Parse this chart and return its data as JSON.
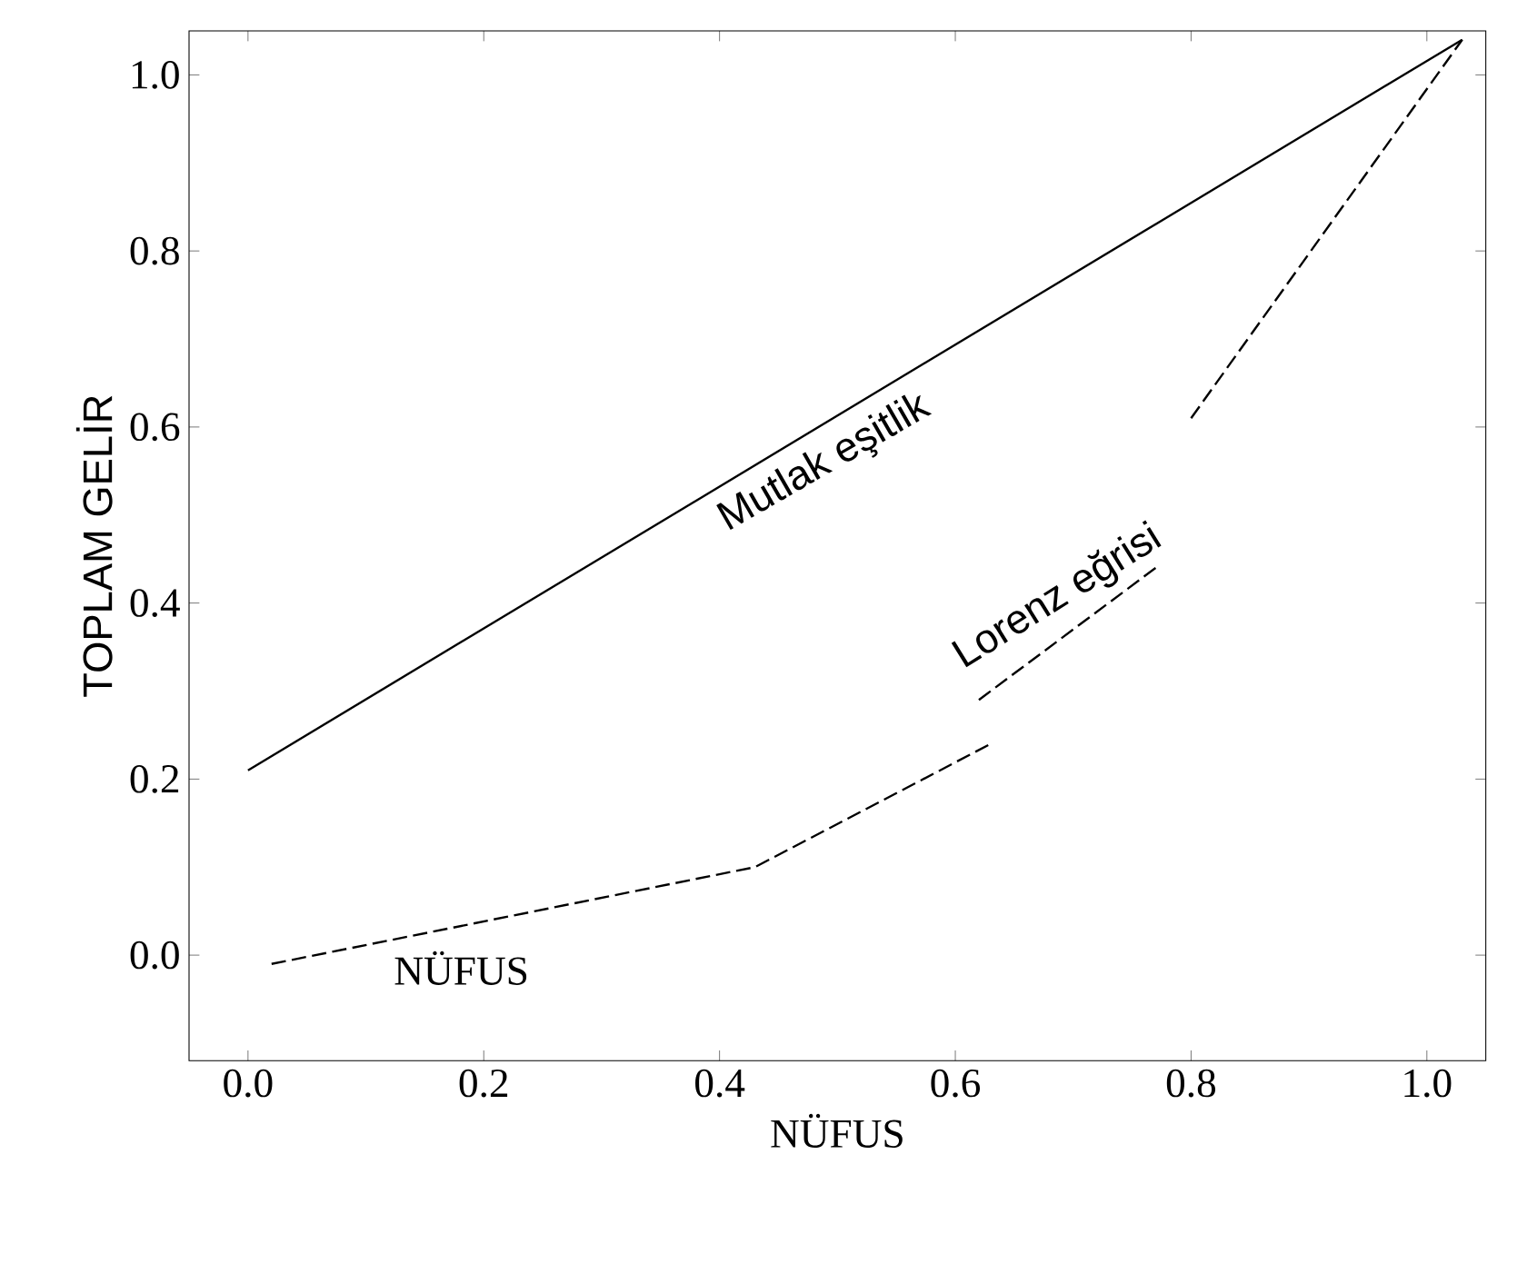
{
  "chart_data": {
    "type": "line",
    "xlabel": "NÜFUS",
    "ylabel": "TOPLAM GELİR",
    "xlim": [
      -0.05,
      1.05
    ],
    "ylim": [
      -0.12,
      1.05
    ],
    "xticks": [
      {
        "value": 0,
        "label": "0.0"
      },
      {
        "value": 0.2,
        "label": "0.2"
      },
      {
        "value": 0.4,
        "label": "0.4"
      },
      {
        "value": 0.6,
        "label": "0.6"
      },
      {
        "value": 0.8,
        "label": "0.8"
      },
      {
        "value": 1,
        "label": "1.0"
      }
    ],
    "yticks": [
      {
        "value": 0,
        "label": "0.0"
      },
      {
        "value": 0.2,
        "label": "0.2"
      },
      {
        "value": 0.4,
        "label": "0.4"
      },
      {
        "value": 0.6,
        "label": "0.6"
      },
      {
        "value": 0.8,
        "label": "0.8"
      },
      {
        "value": 1,
        "label": "1.0"
      }
    ],
    "series": [
      {
        "color": "#000000",
        "line_style": "solid",
        "x": [
          0,
          1.03
        ],
        "values": [
          0.21,
          1.04
        ]
      },
      {
        "color": "#000000",
        "line_style": "dashed",
        "x": [
          0.02,
          0.43,
          0.63,
          null,
          0.62,
          0.77,
          null,
          0.8,
          1.03
        ],
        "values": [
          -0.01,
          0.1,
          0.24,
          null,
          0.29,
          0.44,
          null,
          0.61,
          1.04
        ]
      }
    ],
    "annotations": [
      "Mutlak eşitlik",
      "Lorenz eğrisi",
      "NÜFUS"
    ]
  }
}
